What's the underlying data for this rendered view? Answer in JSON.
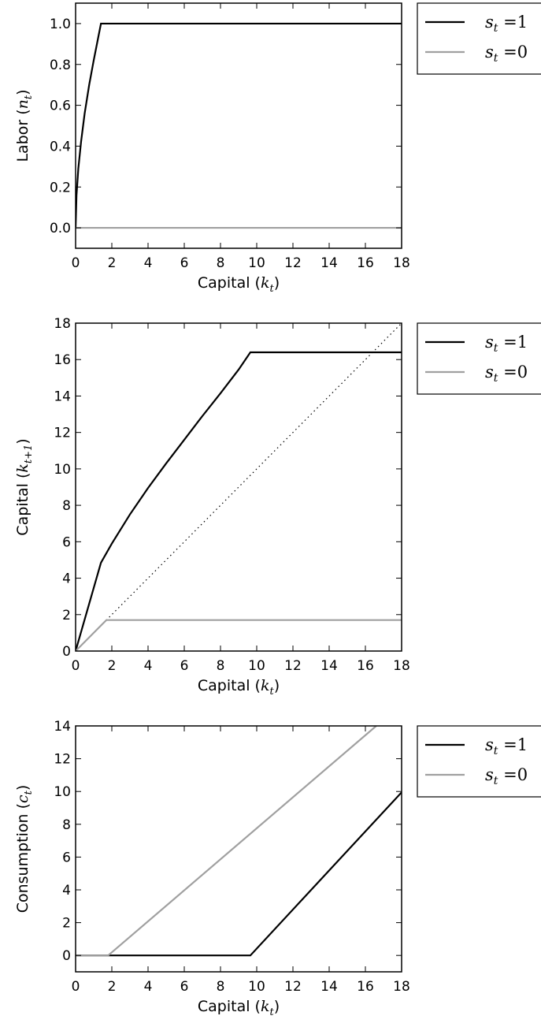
{
  "chart_data": [
    {
      "type": "line",
      "xlabel": "Capital (k_t)",
      "xlabel_parts": [
        "Capital (",
        "k",
        "t",
        ")"
      ],
      "ylabel": "Labor (n_t)",
      "ylabel_parts": [
        "Labor (",
        "n",
        "t",
        ")"
      ],
      "xlim": [
        0,
        18
      ],
      "ylim": [
        -0.1,
        1.1
      ],
      "xticks": [
        0,
        2,
        4,
        6,
        8,
        10,
        12,
        14,
        16,
        18
      ],
      "yticks": [
        "0.0",
        "0.2",
        "0.4",
        "0.6",
        "0.8",
        "1.0"
      ],
      "legend_placement": "outside-top-right",
      "series": [
        {
          "name": "s_t = 1",
          "name_parts": [
            "s",
            "t",
            " =1"
          ],
          "color": "#000000",
          "x": [
            0,
            0.05,
            0.15,
            0.3,
            0.5,
            0.75,
            1.0,
            1.2,
            1.4,
            18
          ],
          "y": [
            0,
            0.16,
            0.29,
            0.42,
            0.56,
            0.7,
            0.82,
            0.91,
            1.0,
            1.0
          ]
        },
        {
          "name": "s_t = 0",
          "name_parts": [
            "s",
            "t",
            " =0"
          ],
          "color": "#a0a0a0",
          "x": [
            0,
            18
          ],
          "y": [
            0,
            0
          ]
        }
      ]
    },
    {
      "type": "line",
      "xlabel": "Capital (k_t)",
      "xlabel_parts": [
        "Capital (",
        "k",
        "t",
        ")"
      ],
      "ylabel": "Capital (k_t+1)",
      "ylabel_parts": [
        "Capital (",
        "k",
        "t+1",
        ")"
      ],
      "xlim": [
        0,
        18
      ],
      "ylim": [
        0,
        18
      ],
      "xticks": [
        0,
        2,
        4,
        6,
        8,
        10,
        12,
        14,
        16,
        18
      ],
      "yticks": [
        "0",
        "2",
        "4",
        "6",
        "8",
        "10",
        "12",
        "14",
        "16",
        "18"
      ],
      "legend_placement": "outside-top-right",
      "reference_line": {
        "type": "45-degree",
        "x": [
          0,
          18
        ],
        "y": [
          0,
          18
        ],
        "style": "dotted",
        "color": "#000000"
      },
      "series": [
        {
          "name": "s_t = 1",
          "name_parts": [
            "s",
            "t",
            " =1"
          ],
          "color": "#000000",
          "x": [
            0,
            1.4,
            2,
            3,
            4,
            5,
            6,
            7,
            8,
            9,
            9.65,
            18
          ],
          "y": [
            0,
            4.85,
            5.9,
            7.5,
            8.95,
            10.3,
            11.6,
            12.9,
            14.15,
            15.45,
            16.4,
            16.4
          ]
        },
        {
          "name": "s_t = 0",
          "name_parts": [
            "s",
            "t",
            " =0"
          ],
          "color": "#a0a0a0",
          "x": [
            0,
            1.7,
            18
          ],
          "y": [
            0,
            1.7,
            1.7
          ]
        }
      ]
    },
    {
      "type": "line",
      "xlabel": "Capital (k_t)",
      "xlabel_parts": [
        "Capital (",
        "k",
        "t",
        ")"
      ],
      "ylabel": "Consumption (c_t)",
      "ylabel_parts": [
        "Consumption (",
        "c",
        "t",
        ")"
      ],
      "xlim": [
        0,
        18
      ],
      "ylim": [
        -1,
        14
      ],
      "xticks": [
        0,
        2,
        4,
        6,
        8,
        10,
        12,
        14,
        16,
        18
      ],
      "yticks": [
        "0",
        "2",
        "4",
        "6",
        "8",
        "10",
        "12",
        "14"
      ],
      "legend_placement": "outside-top-right",
      "series": [
        {
          "name": "s_t = 1",
          "name_parts": [
            "s",
            "t",
            " =1"
          ],
          "color": "#000000",
          "x": [
            0,
            9.65,
            18
          ],
          "y": [
            0,
            0,
            9.95
          ]
        },
        {
          "name": "s_t = 0",
          "name_parts": [
            "s",
            "t",
            " =0"
          ],
          "color": "#a0a0a0",
          "x": [
            0,
            1.8,
            16.6
          ],
          "y": [
            0,
            0,
            14
          ]
        }
      ]
    }
  ]
}
